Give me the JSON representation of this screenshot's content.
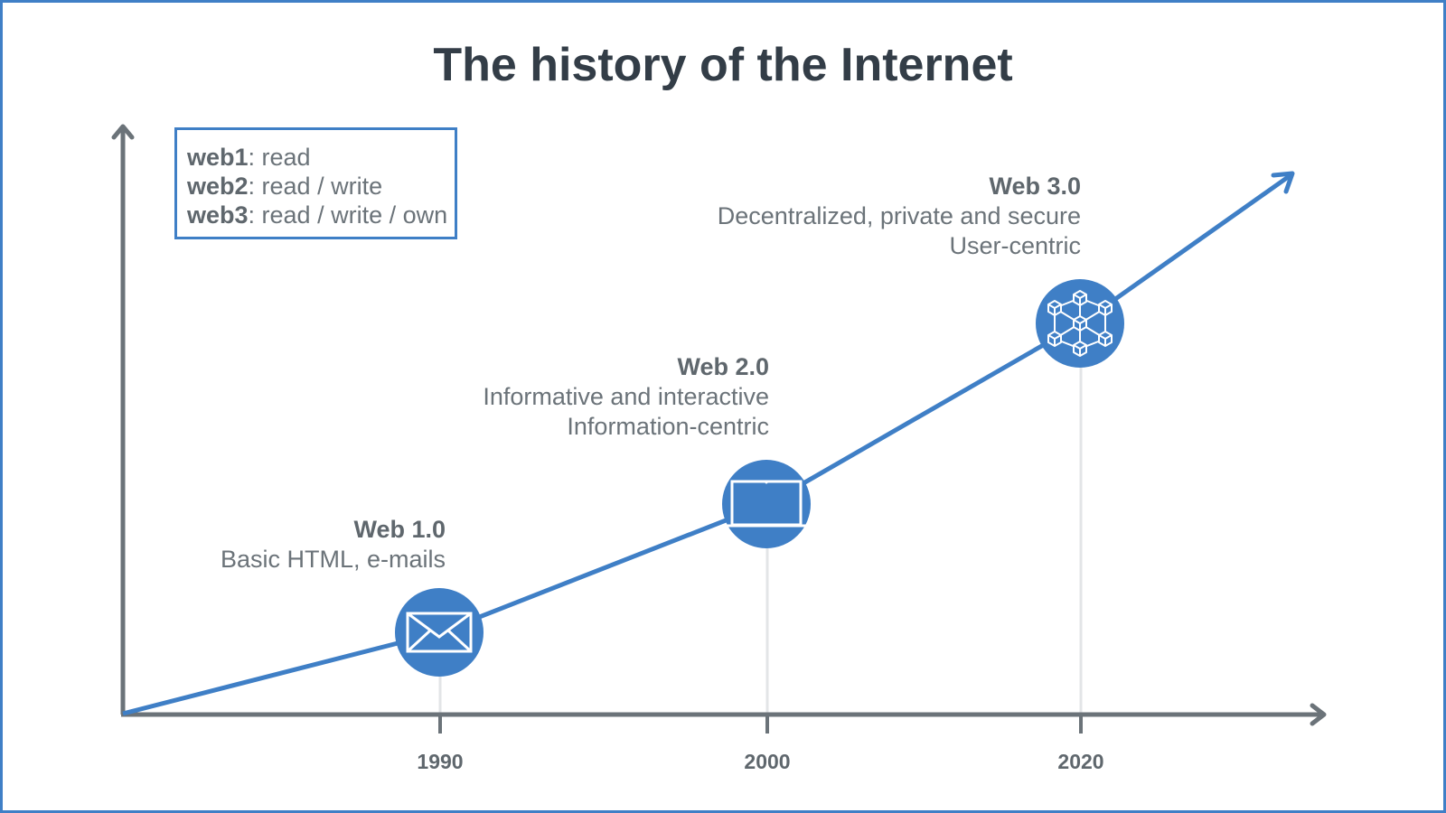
{
  "title": "The history of the Internet",
  "legend": [
    {
      "key": "web1",
      "value": ": read"
    },
    {
      "key": "web2",
      "value": ": read / write"
    },
    {
      "key": "web3",
      "value": ": read / write / own"
    }
  ],
  "eras": [
    {
      "name": "Web 1.0",
      "lines": [
        "Basic HTML, e-mails"
      ],
      "year": "1990",
      "icon": "envelope-icon"
    },
    {
      "name": "Web 2.0",
      "lines": [
        "Informative and interactive",
        "Information-centric"
      ],
      "year": "2000",
      "icon": "laptop-icon"
    },
    {
      "name": "Web 3.0",
      "lines": [
        "Decentralized, private and secure",
        "User-centric"
      ],
      "year": "2020",
      "icon": "blockchain-icon"
    }
  ],
  "colors": {
    "accent": "#3f7fc6",
    "axis": "#6b7379",
    "text": "#333d47"
  }
}
